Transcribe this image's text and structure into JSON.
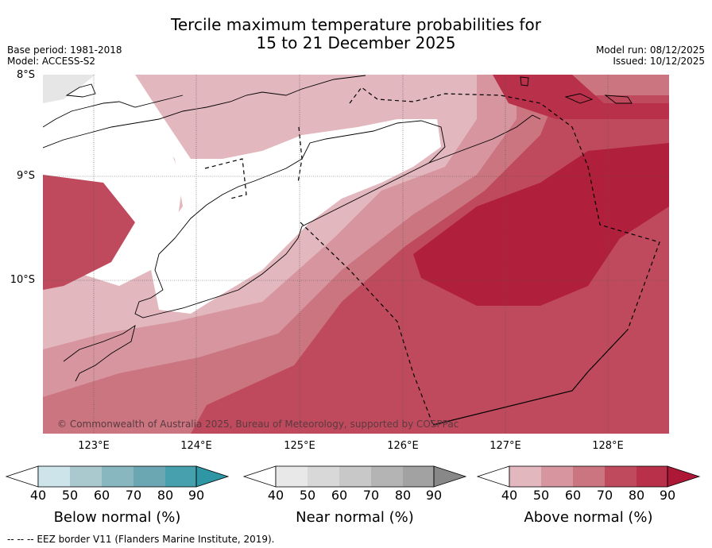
{
  "title_line1": "Tercile maximum temperature probabilities for",
  "title_line2": "15 to 21 December 2025",
  "base_period": "Base period: 1981-2018",
  "model": "Model: ACCESS-S2",
  "model_run": "Model run: 08/12/2025",
  "issued": "Issued: 10/12/2025",
  "latitudes": [
    "8°S",
    "9°S",
    "10°S"
  ],
  "longitudes": [
    "123°E",
    "124°E",
    "125°E",
    "126°E",
    "127°E",
    "128°E"
  ],
  "copyright": "© Commonwealth of Australia 2025, Bureau of Meteorology, supported by COSPPac",
  "legends": [
    {
      "label": "Below normal (%)",
      "ticks": [
        "40",
        "50",
        "60",
        "70",
        "80",
        "90"
      ],
      "colors": [
        "#cce4ea",
        "#a9c9cf",
        "#88b7c0",
        "#6aa7b2",
        "#46a0ae",
        "#2f96a5"
      ]
    },
    {
      "label": "Near normal (%)",
      "ticks": [
        "40",
        "50",
        "60",
        "70",
        "80",
        "90"
      ],
      "colors": [
        "#e8e8e8",
        "#d8d8d8",
        "#c8c8c8",
        "#b4b4b4",
        "#a2a2a2",
        "#888888"
      ]
    },
    {
      "label": "Above normal (%)",
      "ticks": [
        "40",
        "50",
        "60",
        "70",
        "80",
        "90"
      ],
      "colors": [
        "#e2b7bd",
        "#d6959f",
        "#cb7580",
        "#c04a5d",
        "#b8304a",
        "#ad1836"
      ]
    }
  ],
  "footer": "--  --  -- EEZ border V11 (Flanders Marine Institute, 2019)."
}
